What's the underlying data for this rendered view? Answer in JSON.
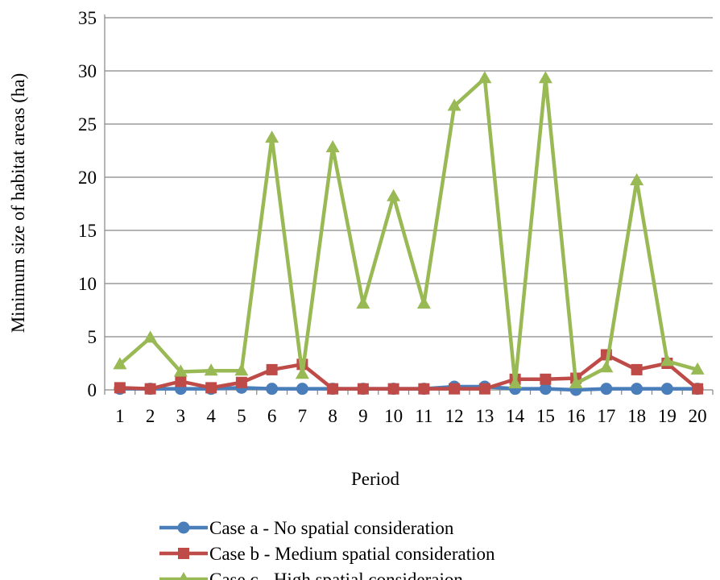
{
  "chart_data": {
    "type": "line",
    "title": "",
    "xlabel": "Period",
    "ylabel": "Minimum size of habitat areas (ha)",
    "x": [
      1,
      2,
      3,
      4,
      5,
      6,
      7,
      8,
      9,
      10,
      11,
      12,
      13,
      14,
      15,
      16,
      17,
      18,
      19,
      20
    ],
    "ylim": [
      0,
      35
    ],
    "yticks": [
      0,
      5,
      10,
      15,
      20,
      25,
      30,
      35
    ],
    "grid": true,
    "legend_position": "bottom",
    "series": [
      {
        "name": "Case a - No spatial consideration",
        "color": "#4a7ebb",
        "marker": "circle",
        "values": [
          0.1,
          0.1,
          0.1,
          0.1,
          0.2,
          0.1,
          0.1,
          0.1,
          0.1,
          0.1,
          0.1,
          0.3,
          0.3,
          0.1,
          0.1,
          0.0,
          0.1,
          0.1,
          0.1,
          0.1
        ]
      },
      {
        "name": "Case b - Medium spatial consideration",
        "color": "#be4b48",
        "marker": "square",
        "values": [
          0.2,
          0.1,
          0.8,
          0.2,
          0.7,
          1.9,
          2.4,
          0.1,
          0.1,
          0.1,
          0.1,
          0.1,
          0.1,
          1.0,
          1.0,
          1.1,
          3.3,
          1.9,
          2.5,
          0.1
        ]
      },
      {
        "name": "Case c - High spatial consideraion",
        "color": "#98b954",
        "marker": "triangle",
        "values": [
          2.4,
          4.9,
          1.7,
          1.8,
          1.8,
          23.7,
          1.5,
          22.8,
          8.1,
          18.2,
          8.1,
          26.7,
          29.3,
          0.6,
          29.3,
          0.6,
          2.1,
          19.7,
          2.7,
          1.9
        ]
      }
    ]
  }
}
